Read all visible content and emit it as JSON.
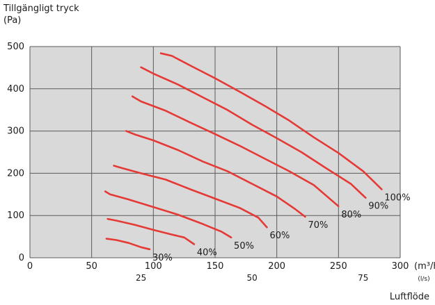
{
  "chart_data": {
    "type": "line",
    "title": "",
    "ylabel": [
      "Tillgängligt tryck",
      "(Pa)"
    ],
    "xlabel": "Luftflöde",
    "x_unit_primary": "(m³/h)",
    "x_unit_secondary": "(l/s)",
    "xlim": [
      0,
      300
    ],
    "ylim": [
      0,
      500
    ],
    "x_ticks": [
      "0",
      "50",
      "100",
      "150",
      "200",
      "250",
      "300"
    ],
    "x_ticks_secondary": [
      {
        "m3h": 90,
        "label": "25"
      },
      {
        "m3h": 180,
        "label": "50"
      },
      {
        "m3h": 270,
        "label": "75"
      }
    ],
    "y_ticks": [
      "0",
      "100",
      "200",
      "300",
      "400",
      "500"
    ],
    "grid": true,
    "background": "#d9d9d9",
    "line_color": "#e53935",
    "series": [
      {
        "name": "100%",
        "x": [
          106,
          115,
          130,
          150,
          170,
          190,
          210,
          230,
          250,
          270,
          285
        ],
        "y": [
          484,
          478,
          455,
          425,
          393,
          360,
          325,
          285,
          248,
          205,
          162
        ]
      },
      {
        "name": "90%",
        "x": [
          90,
          100,
          120,
          140,
          160,
          180,
          200,
          220,
          240,
          260,
          272
        ],
        "y": [
          451,
          436,
          410,
          380,
          350,
          315,
          283,
          250,
          212,
          175,
          142
        ]
      },
      {
        "name": "80%",
        "x": [
          83,
          90,
          110,
          130,
          150,
          170,
          190,
          210,
          230,
          250
        ],
        "y": [
          382,
          370,
          348,
          320,
          293,
          265,
          235,
          205,
          172,
          122
        ]
      },
      {
        "name": "70%",
        "x": [
          78,
          85,
          100,
          120,
          140,
          160,
          180,
          200,
          215,
          223
        ],
        "y": [
          300,
          292,
          278,
          255,
          228,
          205,
          175,
          145,
          115,
          97
        ]
      },
      {
        "name": "60%",
        "x": [
          68,
          75,
          90,
          110,
          130,
          150,
          170,
          185,
          192
        ],
        "y": [
          218,
          212,
          200,
          185,
          162,
          140,
          118,
          95,
          72
        ]
      },
      {
        "name": "50%",
        "x": [
          61,
          65,
          80,
          100,
          120,
          140,
          155,
          163
        ],
        "y": [
          157,
          150,
          138,
          120,
          102,
          80,
          62,
          48
        ]
      },
      {
        "name": "40%",
        "x": [
          63,
          70,
          85,
          100,
          115,
          125,
          133
        ],
        "y": [
          92,
          88,
          78,
          66,
          55,
          48,
          32
        ]
      },
      {
        "name": "30%",
        "x": [
          62,
          70,
          80,
          90,
          97
        ],
        "y": [
          45,
          42,
          35,
          25,
          20
        ]
      }
    ]
  }
}
